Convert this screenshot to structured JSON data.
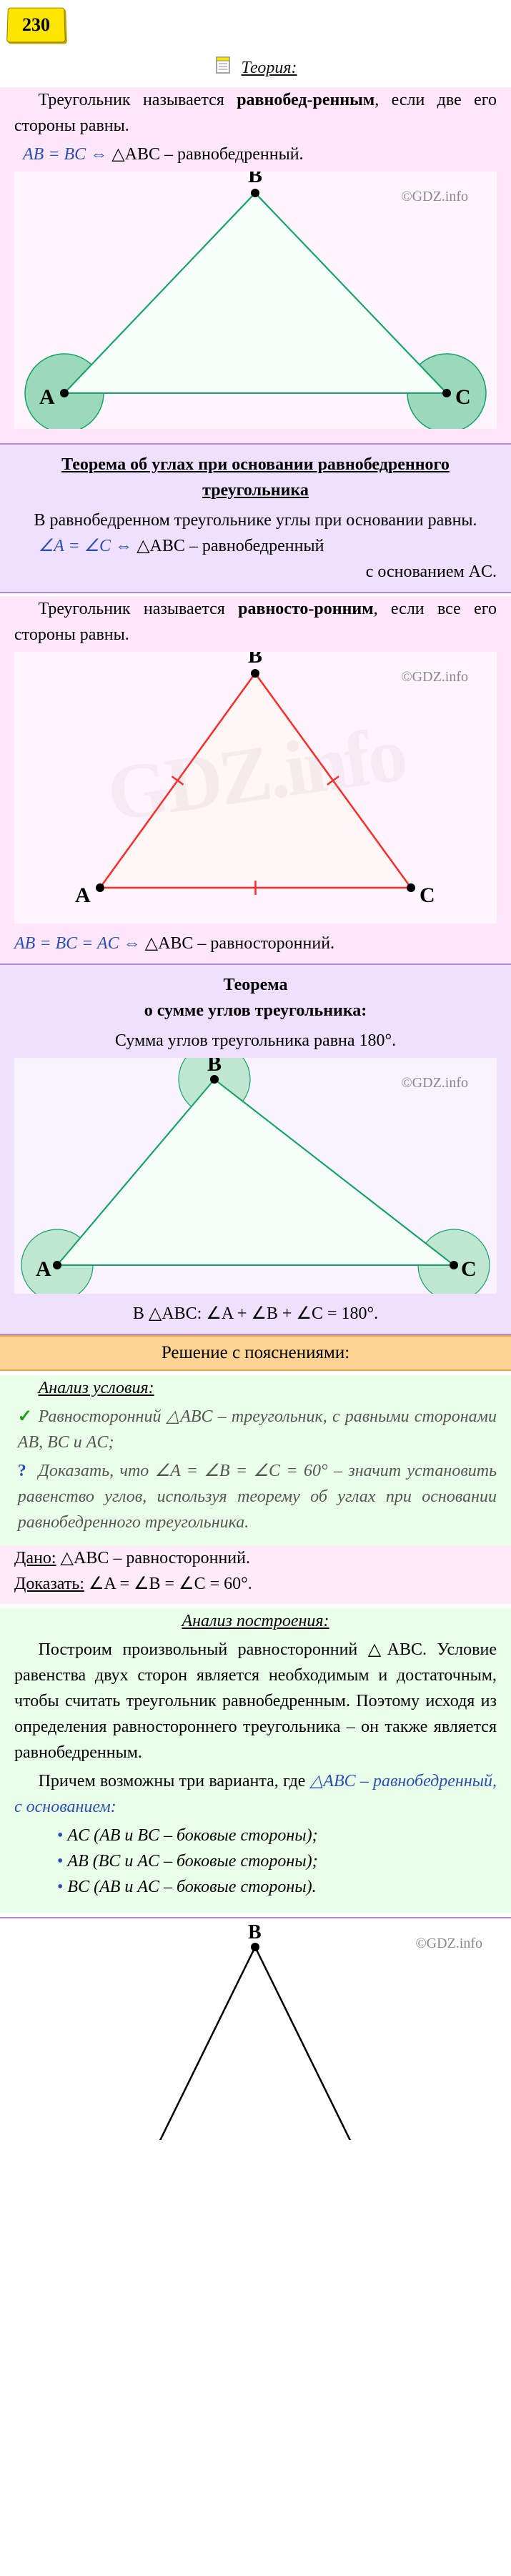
{
  "badge": "230",
  "theory_label": "Теория:",
  "watermark": "©GDZ.info",
  "big_watermark": "GDZ.info",
  "isosceles_def_1": "Треугольник называется ",
  "isosceles_def_bold": "равнобед-ренным",
  "isosceles_def_2": ", если две его стороны равны.",
  "isosceles_formula_1": "AB = BC",
  "symbol_iff": " ⇔ ",
  "isosceles_formula_2": "△ABC – равнобедренный.",
  "theorem1_title": "Теорема об углах при основании равнобедренного треугольника",
  "theorem1_body": "В равнобедренном треугольнике углы при основании равны.",
  "theorem1_f1": "∠A = ∠C",
  "theorem1_f2": "△ABC – равнобедренный",
  "theorem1_f3": "с основанием AC.",
  "equilateral_def_1": "Треугольник называется ",
  "equilateral_def_bold": "равносто-ронним",
  "equilateral_def_2": ", если все его стороны равны.",
  "equilateral_formula_1": "AB = BC = AC",
  "equilateral_formula_2": "△ABC – равносторонний.",
  "theorem2_title1": "Теорема",
  "theorem2_title2": "о сумме углов треугольника:",
  "theorem2_body": "Сумма углов треугольника равна 180°.",
  "theorem2_formula": "В △ABC: ∠A + ∠B + ∠C = 180°.",
  "solution_head": "Решение с пояснениями:",
  "analysis1_head": "Анализ условия:",
  "line_check": "Равносторонний △ABC – треугольник, с равными сторонами AB, BC и AC;",
  "line_q": "Доказать, что ∠A = ∠B = ∠C = 60° – значит установить равенство углов, используя теорему об углах при основании равнобедренного треугольника.",
  "given_lab": "Дано:",
  "given_val": "△ABC – равносторонний.",
  "prove_lab": "Доказать:",
  "prove_val": "∠A = ∠B = ∠C = 60°.",
  "analysis2_head": "Анализ построения:",
  "para2_1": "Построим произвольный равносторонний △ABC. Условие равенства двух сторон является необходимым и достаточным, чтобы считать треугольник равнобедренным. Поэтому исходя из определения равностороннего треугольника – он также является равнобедренным.",
  "para2_2a": "Причем возможны три варианта, где ",
  "para2_2b": "△ABC – равнобедренный, с основанием:",
  "bullet1": "AC (AB и BC – боковые стороны);",
  "bullet2": "AB (BC и AC – боковые стороны);",
  "bullet3": "BC (AB и AC – боковые стороны).",
  "labels": {
    "A": "A",
    "B": "B",
    "C": "C"
  },
  "fig1": {
    "A": [
      70,
      310
    ],
    "B": [
      337,
      30
    ],
    "C": [
      605,
      310
    ],
    "stroke": "#17a06a",
    "fill": "#f6fffa",
    "angle_fill": "#9ad9b9",
    "angle_r": 55,
    "label_fs": 30
  },
  "fig2": {
    "A": [
      120,
      330
    ],
    "B": [
      337,
      30
    ],
    "C": [
      555,
      330
    ],
    "stroke": "#ff2a2a",
    "fill": "#fff6f6",
    "label_fs": 30
  },
  "fig3": {
    "A": [
      60,
      290
    ],
    "B": [
      280,
      30
    ],
    "C": [
      615,
      290
    ],
    "stroke": "#17a06a",
    "fill": "#f4fdf7",
    "angle_fill": "#bfe6d0",
    "angle_r": 50,
    "label_fs": 30
  }
}
